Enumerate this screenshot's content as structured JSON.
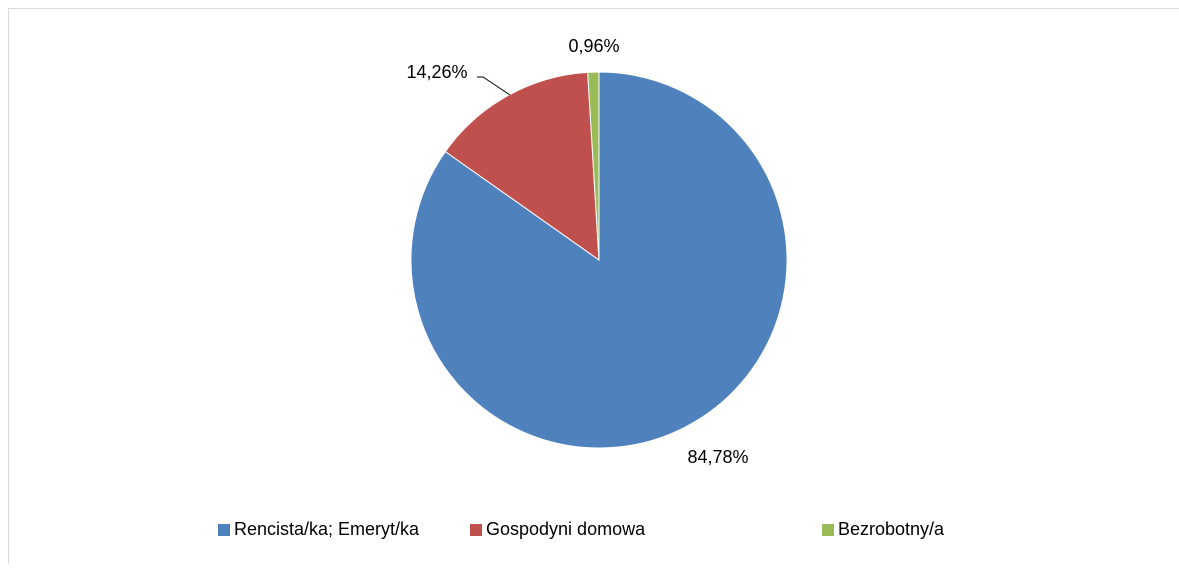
{
  "chart_data": {
    "type": "pie",
    "categories": [
      "Rencista/ka; Emeryt/ka",
      "Gospodyni domowa",
      "Bezrobotny/a"
    ],
    "values": [
      84.78,
      14.26,
      0.96
    ],
    "value_labels": [
      "84,78%",
      "14,26%",
      "0,96%"
    ],
    "colors": [
      "#4f81bd",
      "#c0504d",
      "#9bbb59"
    ],
    "legend": "bottom"
  }
}
